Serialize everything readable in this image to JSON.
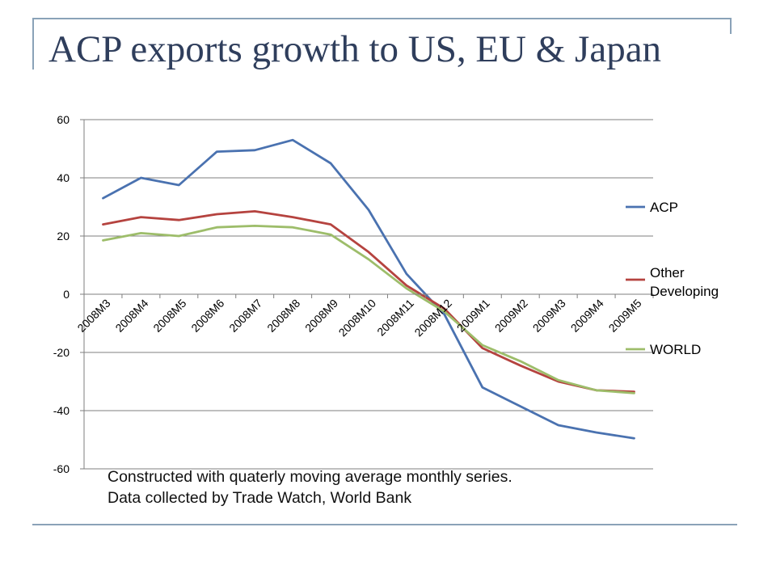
{
  "slide": {
    "title": "ACP exports growth to US, EU & Japan",
    "caption_lines": [
      "Constructed with quaterly moving average monthly series.",
      "Data collected by Trade Watch, World Bank"
    ],
    "accent_color": "#8aa2b8",
    "title_color": "#2f3e5c"
  },
  "chart_data": {
    "type": "line",
    "categories": [
      "2008M3",
      "2008M4",
      "2008M5",
      "2008M6",
      "2008M7",
      "2008M8",
      "2008M9",
      "2008M10",
      "2008M11",
      "2008M12",
      "2009M1",
      "2009M2",
      "2009M3",
      "2009M4",
      "2009M5"
    ],
    "ylim": [
      -60,
      60
    ],
    "yticks": [
      60,
      40,
      20,
      0,
      -20,
      -40,
      -60
    ],
    "grid": true,
    "legend_position": "right",
    "series": [
      {
        "name": "ACP",
        "color": "#4a72b0",
        "values": [
          33,
          40,
          37.5,
          49,
          49.5,
          53,
          45,
          29,
          7,
          -7,
          -32,
          -38.5,
          -45,
          -47.5,
          -49.5
        ]
      },
      {
        "name": "Other Developing",
        "color": "#b5433f",
        "values": [
          24,
          26.5,
          25.5,
          27.5,
          28.5,
          26.5,
          24,
          14.5,
          3,
          -5,
          -18.5,
          -24.5,
          -30,
          -33,
          -33.5
        ]
      },
      {
        "name": "WORLD",
        "color": "#9dbd6a",
        "values": [
          18.5,
          21,
          20,
          23,
          23.5,
          23,
          20.5,
          12,
          2,
          -6,
          -17.5,
          -23,
          -29.5,
          -33,
          -34
        ]
      }
    ]
  }
}
